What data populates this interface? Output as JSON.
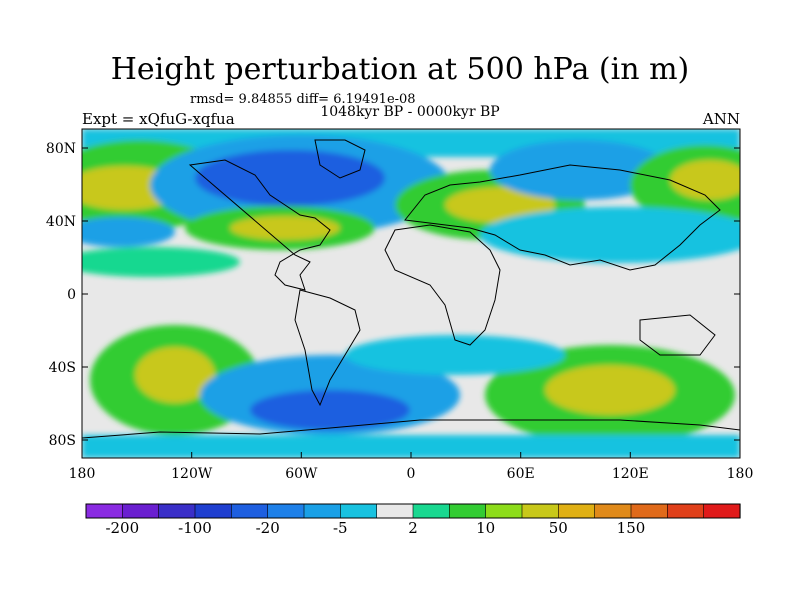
{
  "header": {
    "title": "Height perturbation at 500 hPa (in m)",
    "stats": "rmsd= 9.84855  diff= 6.19491e-08",
    "period": "1048kyr BP - 0000kyr BP",
    "experiment": "Expt = xQfuG-xqfua",
    "season": "ANN"
  },
  "axes": {
    "lat_ticks": [
      "80N",
      "40N",
      "0",
      "40S",
      "80S"
    ],
    "lon_ticks": [
      "180",
      "120W",
      "60W",
      "0",
      "60E",
      "120E",
      "180"
    ]
  },
  "colorbar": {
    "colors": [
      "#8a2be2",
      "#6a1fd0",
      "#3a2fc8",
      "#1f3fd0",
      "#1e5fe0",
      "#1e80e8",
      "#1aa0e6",
      "#19c2e0",
      "#e8e8e8",
      "#19d890",
      "#33cc33",
      "#8ddc1a",
      "#c8c81a",
      "#e0b014",
      "#e08a1a",
      "#e06a1a",
      "#e0401a",
      "#e01a1a"
    ],
    "labels": [
      "-200",
      "-100",
      "-20",
      "-5",
      "2",
      "10",
      "50",
      "150"
    ]
  }
}
